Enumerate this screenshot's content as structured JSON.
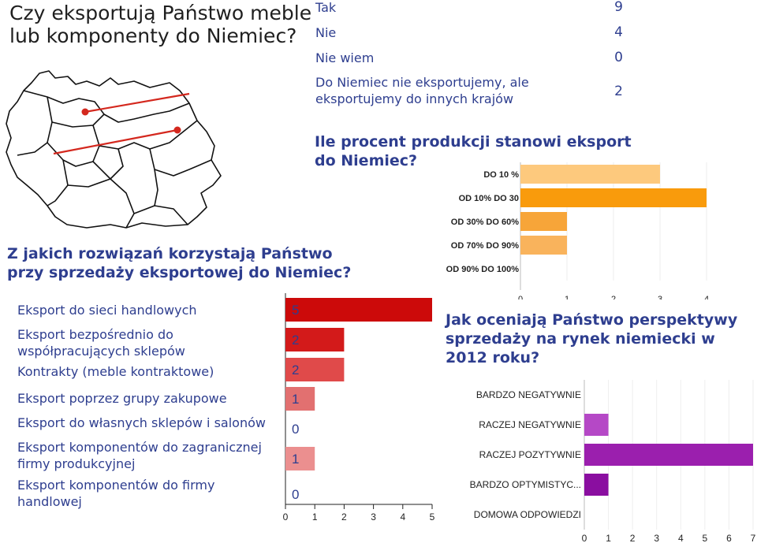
{
  "main_title_line1": "Czy eksportują Państwo meble",
  "main_title_line2": "lub komponenty do Niemiec?",
  "export_table": [
    {
      "label": "Tak",
      "value": "9"
    },
    {
      "label": "Nie",
      "value": "4"
    },
    {
      "label": "Nie wiem",
      "value": "0"
    },
    {
      "label": "Do Niemiec nie eksportujemy, ale eksportujemy do innych krajów",
      "value": "2"
    }
  ],
  "q2_title": "Ile procent produkcji stanowi eksport do Niemiec?",
  "q3_title": "Z jakich rozwiązań korzystają Państwo przy sprzedaży eksportowej do Niemiec?",
  "q4_title": "Jak oceniają Państwo perspektywy sprzedaży na rynek niemiecki w 2012 roku?",
  "chart_data": [
    {
      "type": "bar",
      "orientation": "horizontal",
      "categories": [
        "DO 10 %",
        "OD 10% DO 30",
        "OD 30% DO 60%",
        "OD 70% DO 90%",
        "OD 90% DO 100%"
      ],
      "values": [
        3,
        4,
        1,
        1,
        0
      ],
      "colors": [
        "#fdc97d",
        "#f99b0c",
        "#f7a539",
        "#f9b35c",
        "#f9b35c"
      ],
      "xlim": [
        0,
        4
      ],
      "xticks": [
        "0",
        "1",
        "2",
        "3",
        "4"
      ]
    },
    {
      "type": "bar",
      "orientation": "horizontal",
      "categories": [
        "Eksport do sieci handlowych",
        "Eksport bezpośrednio do współpracujących sklepów",
        "Kontrakty (meble kontraktowe)",
        "Eksport poprzez grupy zakupowe",
        "Eksport do własnych sklepów i salonów",
        "Eksport komponentów do zagranicznej firmy produkcyjnej",
        "Eksport komponentów do firmy handlowej"
      ],
      "values": [
        5,
        2,
        2,
        1,
        0,
        1,
        0
      ],
      "value_labels": [
        "5",
        "2",
        "2",
        "1",
        "0",
        "1",
        "0"
      ],
      "colors": [
        "#cc0a0a",
        "#d31a1a",
        "#e04a4a",
        "#e27070",
        "#e27070",
        "#eb8f8f",
        "#eb8f8f"
      ],
      "xlim": [
        0,
        5
      ],
      "xticks": [
        "0",
        "1",
        "2",
        "3",
        "4",
        "5"
      ]
    },
    {
      "type": "bar",
      "orientation": "horizontal",
      "categories": [
        "BARDZO NEGATYWNIE",
        "RACZEJ NEGATYWNIE",
        "RACZEJ POZYTYWNIE",
        "BARDZO OPTYMISTYC...",
        "DOMOWA ODPOWIEDZI"
      ],
      "values": [
        0,
        1,
        7,
        1,
        0
      ],
      "colors": [
        "#b548c6",
        "#b548c6",
        "#9b1fae",
        "#8a0ea0",
        "#8a0ea0"
      ],
      "xlim": [
        0,
        7
      ],
      "xticks": [
        "0",
        "1",
        "2",
        "3",
        "4",
        "5",
        "6",
        "7"
      ]
    }
  ]
}
